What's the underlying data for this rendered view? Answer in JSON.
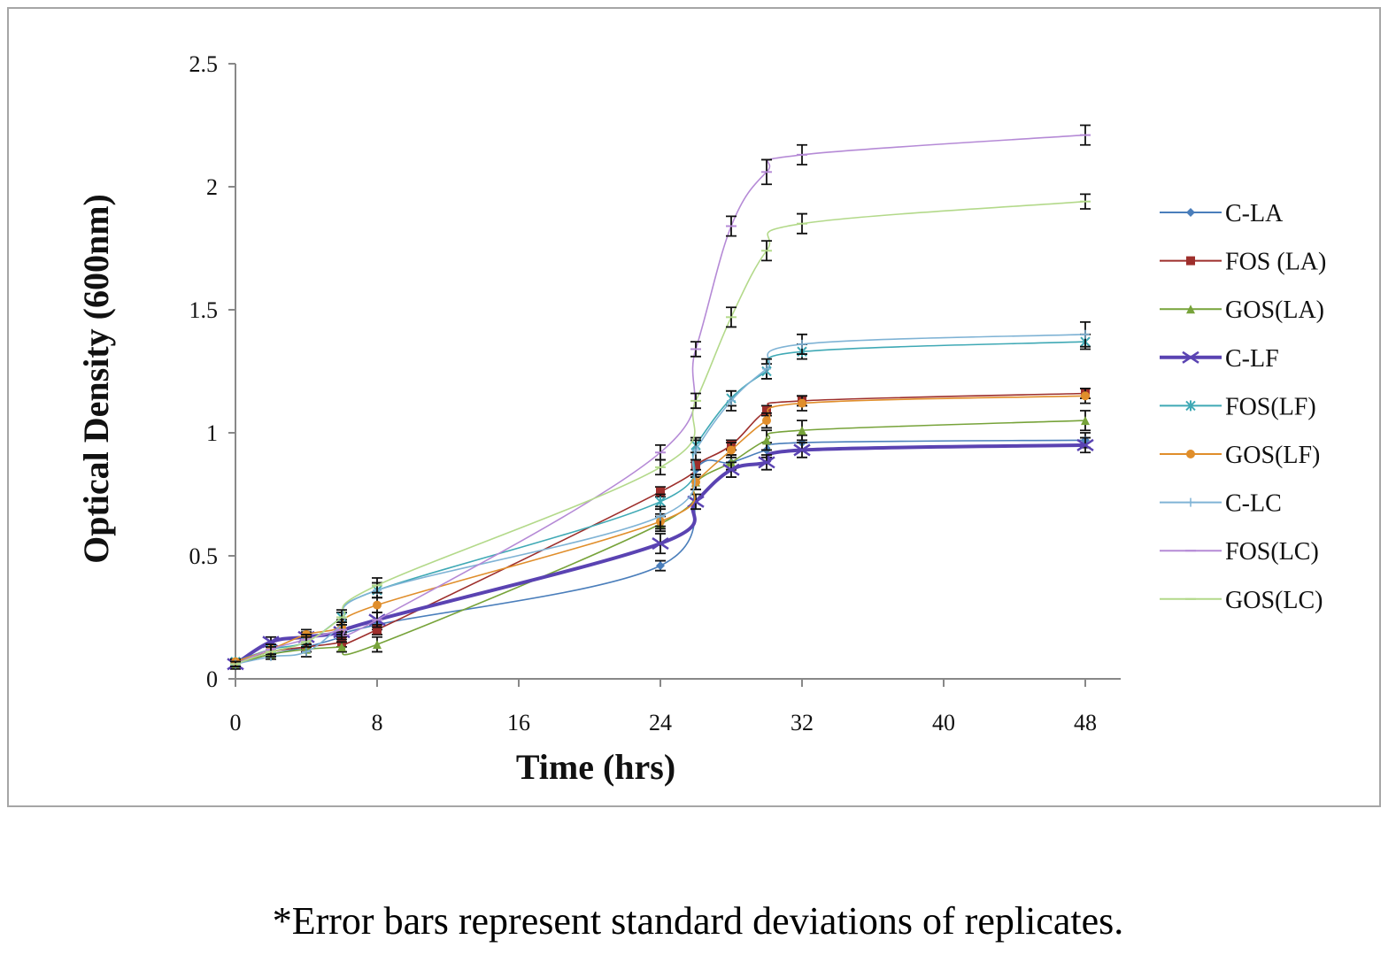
{
  "chart_data": {
    "type": "line",
    "title": "",
    "xlabel": "Time (hrs)",
    "ylabel": "Optical Density (600nm)",
    "xlim": [
      0,
      50
    ],
    "ylim": [
      0,
      2.5
    ],
    "x_ticks": [
      "0",
      "8",
      "16",
      "24",
      "32",
      "40",
      "48"
    ],
    "y_ticks": [
      "0",
      "0.5",
      "1",
      "1.5",
      "2",
      "2.5"
    ],
    "x": [
      0,
      2,
      4,
      6,
      8,
      24,
      26,
      28,
      30,
      32,
      48
    ],
    "series": [
      {
        "name": "C-LA",
        "color": "#4a7ebb",
        "marker": "diamond",
        "values": [
          0.06,
          0.1,
          0.13,
          0.17,
          0.22,
          0.46,
          0.85,
          0.88,
          0.93,
          0.96,
          0.97
        ],
        "errors": [
          0.01,
          0.01,
          0.01,
          0.02,
          0.02,
          0.02,
          0.03,
          0.03,
          0.03,
          0.03,
          0.03
        ]
      },
      {
        "name": "FOS (LA)",
        "color": "#9e2f2c",
        "marker": "square",
        "values": [
          0.06,
          0.11,
          0.13,
          0.15,
          0.2,
          0.76,
          0.87,
          0.95,
          1.09,
          1.13,
          1.16
        ],
        "errors": [
          0.01,
          0.01,
          0.01,
          0.02,
          0.02,
          0.02,
          0.02,
          0.02,
          0.02,
          0.02,
          0.02
        ]
      },
      {
        "name": "GOS(LA)",
        "color": "#77a33a",
        "marker": "triangle",
        "values": [
          0.06,
          0.1,
          0.12,
          0.13,
          0.14,
          0.63,
          0.8,
          0.88,
          0.97,
          1.01,
          1.05
        ],
        "errors": [
          0.01,
          0.01,
          0.01,
          0.02,
          0.03,
          0.03,
          0.03,
          0.03,
          0.04,
          0.04,
          0.04
        ]
      },
      {
        "name": "C-LF",
        "color": "#5a43b2",
        "marker": "x",
        "thick": true,
        "values": [
          0.06,
          0.15,
          0.17,
          0.19,
          0.24,
          0.55,
          0.72,
          0.85,
          0.88,
          0.93,
          0.95
        ],
        "errors": [
          0.02,
          0.02,
          0.02,
          0.03,
          0.03,
          0.04,
          0.03,
          0.03,
          0.03,
          0.03,
          0.03
        ]
      },
      {
        "name": "FOS(LF)",
        "color": "#3fa9b5",
        "marker": "star",
        "values": [
          0.07,
          0.12,
          0.15,
          0.25,
          0.36,
          0.72,
          0.95,
          1.14,
          1.25,
          1.33,
          1.37
        ],
        "errors": [
          0.01,
          0.01,
          0.02,
          0.02,
          0.03,
          0.03,
          0.03,
          0.03,
          0.03,
          0.03,
          0.03
        ]
      },
      {
        "name": "GOS(LF)",
        "color": "#e08e2b",
        "marker": "circle",
        "values": [
          0.07,
          0.12,
          0.18,
          0.21,
          0.3,
          0.64,
          0.8,
          0.93,
          1.05,
          1.12,
          1.15
        ],
        "errors": [
          0.01,
          0.01,
          0.02,
          0.03,
          0.03,
          0.03,
          0.03,
          0.03,
          0.03,
          0.03,
          0.03
        ]
      },
      {
        "name": "C-LC",
        "color": "#7fb3d5",
        "marker": "plus",
        "values": [
          0.06,
          0.09,
          0.11,
          0.22,
          0.36,
          0.66,
          0.93,
          1.13,
          1.26,
          1.36,
          1.4
        ],
        "errors": [
          0.01,
          0.01,
          0.02,
          0.03,
          0.03,
          0.04,
          0.04,
          0.04,
          0.04,
          0.04,
          0.05
        ]
      },
      {
        "name": "FOS(LC)",
        "color": "#b58ad6",
        "marker": "dash",
        "values": [
          0.06,
          0.12,
          0.16,
          0.2,
          0.24,
          0.92,
          1.34,
          1.84,
          2.06,
          2.13,
          2.21
        ],
        "errors": [
          0.01,
          0.02,
          0.02,
          0.03,
          0.03,
          0.03,
          0.03,
          0.04,
          0.05,
          0.04,
          0.04
        ]
      },
      {
        "name": "GOS(LC)",
        "color": "#b3d98a",
        "marker": "dash",
        "values": [
          0.06,
          0.11,
          0.15,
          0.25,
          0.38,
          0.86,
          1.13,
          1.47,
          1.74,
          1.85,
          1.94
        ],
        "errors": [
          0.01,
          0.02,
          0.02,
          0.03,
          0.03,
          0.03,
          0.03,
          0.04,
          0.04,
          0.04,
          0.03
        ]
      }
    ],
    "legend": "right"
  },
  "caption": "*Error bars represent standard deviations of replicates."
}
